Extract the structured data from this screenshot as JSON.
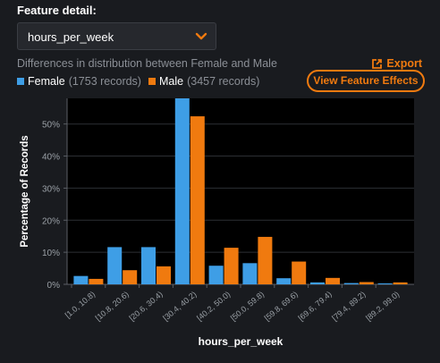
{
  "feature_detail": {
    "label": "Feature detail:",
    "selected": "hours_per_week"
  },
  "subtitle": "Differences in distribution between Female and Male",
  "export_label": "Export",
  "view_effects_label": "View Feature Effects",
  "legend": [
    {
      "name": "Female",
      "count": "(1753 records)",
      "color": "#3e9ee6"
    },
    {
      "name": "Male",
      "count": "(3457 records)",
      "color": "#f07a0f"
    }
  ],
  "colors": {
    "accent": "#f07a0f",
    "female": "#3e9ee6",
    "male": "#f07a0f"
  },
  "chart_data": {
    "type": "bar",
    "title": "",
    "xlabel": "hours_per_week",
    "ylabel": "Percentage of Records",
    "ylim": [
      0,
      58
    ],
    "yticks": [
      0,
      10,
      20,
      30,
      40,
      50
    ],
    "ytick_labels": [
      "0%",
      "10%",
      "20%",
      "30%",
      "40%",
      "50%"
    ],
    "grid": true,
    "categories": [
      "[1.0, 10.8)",
      "[10.8, 20.6)",
      "[20.6, 30.4)",
      "[30.4, 40.2)",
      "[40.2, 50.0)",
      "[50.0, 59.8)",
      "[59.8, 69.6)",
      "[69.6, 79.4)",
      "[79.4, 89.2)",
      "[89.2, 99.0)"
    ],
    "series": [
      {
        "name": "Female",
        "color": "#3e9ee6",
        "values": [
          2.6,
          11.6,
          11.6,
          59.0,
          5.8,
          6.6,
          1.9,
          0.6,
          0.4,
          0.3
        ]
      },
      {
        "name": "Male",
        "color": "#f07a0f",
        "values": [
          1.7,
          4.4,
          5.6,
          52.4,
          11.4,
          14.8,
          7.1,
          2.0,
          0.7,
          0.6
        ]
      }
    ]
  }
}
